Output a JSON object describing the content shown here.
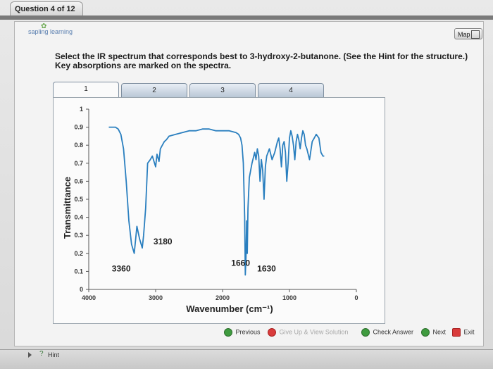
{
  "question": {
    "label": "Question 4 of 12"
  },
  "branding": {
    "logo_text": "sapling learning"
  },
  "toolbar": {
    "map_label": "Map"
  },
  "prompt": {
    "line1": "Select the IR spectrum that corresponds best to 3-hydroxy-2-butanone. (See the Hint for the structure.)",
    "line2": "Key absorptions are marked on the spectra."
  },
  "tabs": [
    {
      "label": "1",
      "active": true
    },
    {
      "label": "2",
      "active": false
    },
    {
      "label": "3",
      "active": false
    },
    {
      "label": "4",
      "active": false
    }
  ],
  "chart_data": {
    "type": "line",
    "xlabel": "Wavenumber (cm⁻¹)",
    "ylabel": "Transmittance",
    "xlim": [
      4000,
      0
    ],
    "ylim": [
      0,
      1
    ],
    "x_ticks": [
      4000,
      3000,
      2000,
      1000,
      0
    ],
    "y_ticks": [
      0,
      0.1,
      0.2,
      0.3,
      0.4,
      0.5,
      0.6,
      0.7,
      0.8,
      0.9,
      1
    ],
    "y_tick_labels": [
      "0",
      "0.1",
      "0.2",
      "0.3",
      "0.4",
      "0.5",
      "0.6",
      "0.7",
      "0.8",
      "0.9",
      "1"
    ],
    "series_color": "#2a7fbf",
    "series": [
      {
        "x": [
          3700,
          3650,
          3600,
          3560,
          3520,
          3480,
          3440,
          3400,
          3360,
          3320,
          3280,
          3240,
          3200,
          3180,
          3150,
          3120,
          3080,
          3050,
          3000,
          2980,
          2950,
          2930,
          2900,
          2870,
          2840,
          2800,
          2700,
          2600,
          2500,
          2400,
          2300,
          2200,
          2100,
          2000,
          1900,
          1800,
          1760,
          1730,
          1710,
          1690,
          1670,
          1660,
          1650,
          1640,
          1630,
          1620,
          1600,
          1560,
          1520,
          1500,
          1480,
          1460,
          1440,
          1420,
          1400,
          1380,
          1360,
          1340,
          1300,
          1260,
          1220,
          1180,
          1160,
          1140,
          1120,
          1100,
          1080,
          1060,
          1040,
          1020,
          1000,
          980,
          960,
          940,
          920,
          900,
          880,
          860,
          840,
          820,
          800,
          780,
          760,
          740,
          700,
          660,
          630,
          600,
          560,
          530,
          500,
          480
        ],
        "y": [
          0.9,
          0.9,
          0.9,
          0.89,
          0.86,
          0.78,
          0.6,
          0.38,
          0.25,
          0.2,
          0.35,
          0.28,
          0.23,
          0.3,
          0.45,
          0.7,
          0.72,
          0.74,
          0.68,
          0.75,
          0.71,
          0.78,
          0.8,
          0.82,
          0.83,
          0.85,
          0.86,
          0.87,
          0.88,
          0.88,
          0.89,
          0.89,
          0.88,
          0.88,
          0.88,
          0.87,
          0.86,
          0.84,
          0.8,
          0.7,
          0.4,
          0.08,
          0.18,
          0.38,
          0.2,
          0.45,
          0.62,
          0.7,
          0.76,
          0.72,
          0.78,
          0.74,
          0.6,
          0.72,
          0.66,
          0.5,
          0.68,
          0.74,
          0.78,
          0.72,
          0.76,
          0.82,
          0.84,
          0.78,
          0.68,
          0.8,
          0.82,
          0.76,
          0.6,
          0.7,
          0.84,
          0.88,
          0.85,
          0.8,
          0.72,
          0.82,
          0.86,
          0.83,
          0.78,
          0.84,
          0.88,
          0.86,
          0.8,
          0.78,
          0.72,
          0.82,
          0.84,
          0.86,
          0.84,
          0.76,
          0.74,
          0.74
        ]
      }
    ],
    "annotations": [
      {
        "text": "3360",
        "x": 3360,
        "y": 0.1
      },
      {
        "text": "3180",
        "x": 3180,
        "y": 0.25
      },
      {
        "text": "1660",
        "x": 1660,
        "y": 0.13
      },
      {
        "text": "1630",
        "x": 1630,
        "y": 0.1
      }
    ],
    "grid": false
  },
  "navigation": {
    "previous_label": "Previous",
    "giveup_label": "Give Up & View Solution",
    "check_label": "Check Answer",
    "next_label": "Next",
    "exit_label": "Exit"
  },
  "hint": {
    "label": "Hint"
  }
}
